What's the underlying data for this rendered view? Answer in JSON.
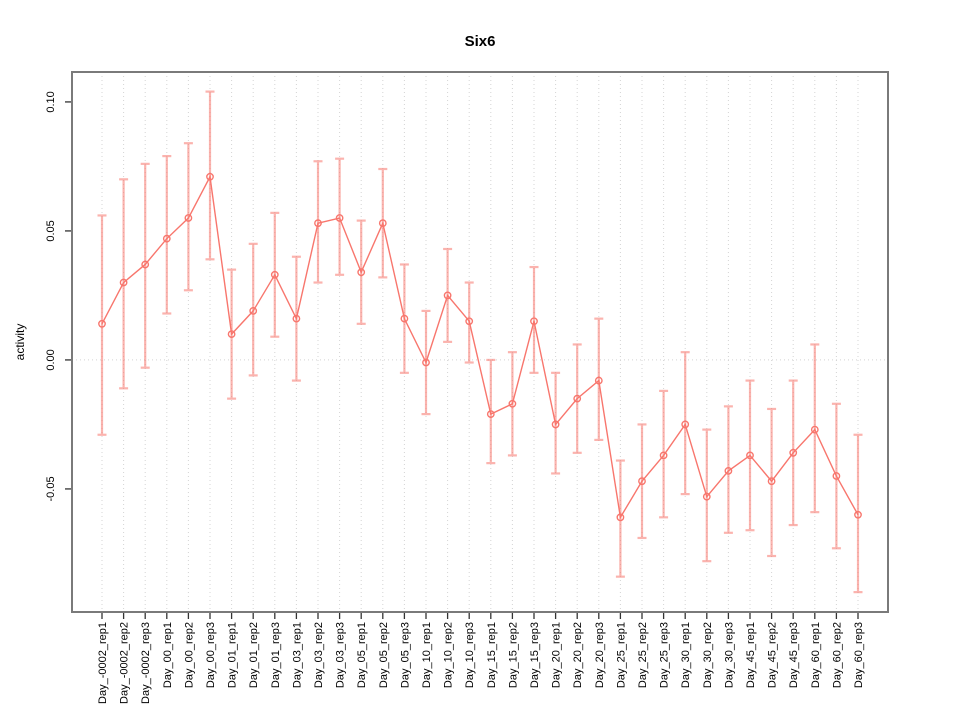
{
  "title": "Six6",
  "chart_data": {
    "type": "line",
    "title": "Six6",
    "xlabel": "",
    "ylabel": "activity",
    "legend": "none",
    "grid": "vertical dotted gridline at every category; horizontal dotted gridline at 0.00 only",
    "point_style": "open-circle",
    "series_color": "#F8766D",
    "errorbar_color": "#F8766D",
    "errorbar_opacity": 0.55,
    "ylim": [
      -0.0977,
      0.1116
    ],
    "y_tick_values": [
      0.1,
      0.05,
      0.0,
      -0.05
    ],
    "y_tick_labels": [
      "0.10",
      "0.05",
      "0.00",
      "-0.05"
    ],
    "categories": [
      "Day_-0002_rep1",
      "Day_-0002_rep2",
      "Day_-0002_rep3",
      "Day_00_rep1",
      "Day_00_rep2",
      "Day_00_rep3",
      "Day_01_rep1",
      "Day_01_rep2",
      "Day_01_rep3",
      "Day_03_rep1",
      "Day_03_rep2",
      "Day_03_rep3",
      "Day_05_rep1",
      "Day_05_rep2",
      "Day_05_rep3",
      "Day_10_rep1",
      "Day_10_rep2",
      "Day_10_rep3",
      "Day_15_rep1",
      "Day_15_rep2",
      "Day_15_rep3",
      "Day_20_rep1",
      "Day_20_rep2",
      "Day_20_rep3",
      "Day_25_rep1",
      "Day_25_rep2",
      "Day_25_rep3",
      "Day_30_rep1",
      "Day_30_rep2",
      "Day_30_rep3",
      "Day_45_rep1",
      "Day_45_rep2",
      "Day_45_rep3",
      "Day_60_rep1",
      "Day_60_rep2",
      "Day_60_rep3"
    ],
    "series": [
      {
        "name": "activity",
        "values": [
          0.014,
          0.03,
          0.037,
          0.047,
          0.055,
          0.071,
          0.01,
          0.019,
          0.033,
          0.016,
          0.053,
          0.055,
          0.034,
          0.053,
          0.016,
          -0.001,
          0.025,
          0.015,
          -0.021,
          -0.017,
          0.015,
          -0.025,
          -0.015,
          -0.008,
          -0.061,
          -0.047,
          -0.037,
          -0.025,
          -0.053,
          -0.043,
          -0.037,
          -0.047,
          -0.036,
          -0.027,
          -0.045,
          -0.06
        ],
        "upper": [
          0.056,
          0.07,
          0.076,
          0.079,
          0.084,
          0.104,
          0.035,
          0.045,
          0.057,
          0.04,
          0.077,
          0.078,
          0.054,
          0.074,
          0.037,
          0.019,
          0.043,
          0.03,
          0.0,
          0.003,
          0.036,
          -0.005,
          0.006,
          0.016,
          -0.039,
          -0.025,
          -0.012,
          0.003,
          -0.027,
          -0.018,
          -0.008,
          -0.019,
          -0.008,
          0.006,
          -0.017,
          -0.029
        ],
        "lower": [
          -0.029,
          -0.011,
          -0.003,
          0.018,
          0.027,
          0.039,
          -0.015,
          -0.006,
          0.009,
          -0.008,
          0.03,
          0.033,
          0.014,
          0.032,
          -0.005,
          -0.021,
          0.007,
          -0.001,
          -0.04,
          -0.037,
          -0.005,
          -0.044,
          -0.036,
          -0.031,
          -0.084,
          -0.069,
          -0.061,
          -0.052,
          -0.078,
          -0.067,
          -0.066,
          -0.076,
          -0.064,
          -0.059,
          -0.073,
          -0.09
        ]
      }
    ]
  },
  "colors": {
    "background": "#ffffff",
    "plot_border": "#7a7a7a",
    "gridline": "#d4d4d4",
    "tick": "#333333",
    "text": "#000000",
    "series": "#F8766D"
  }
}
